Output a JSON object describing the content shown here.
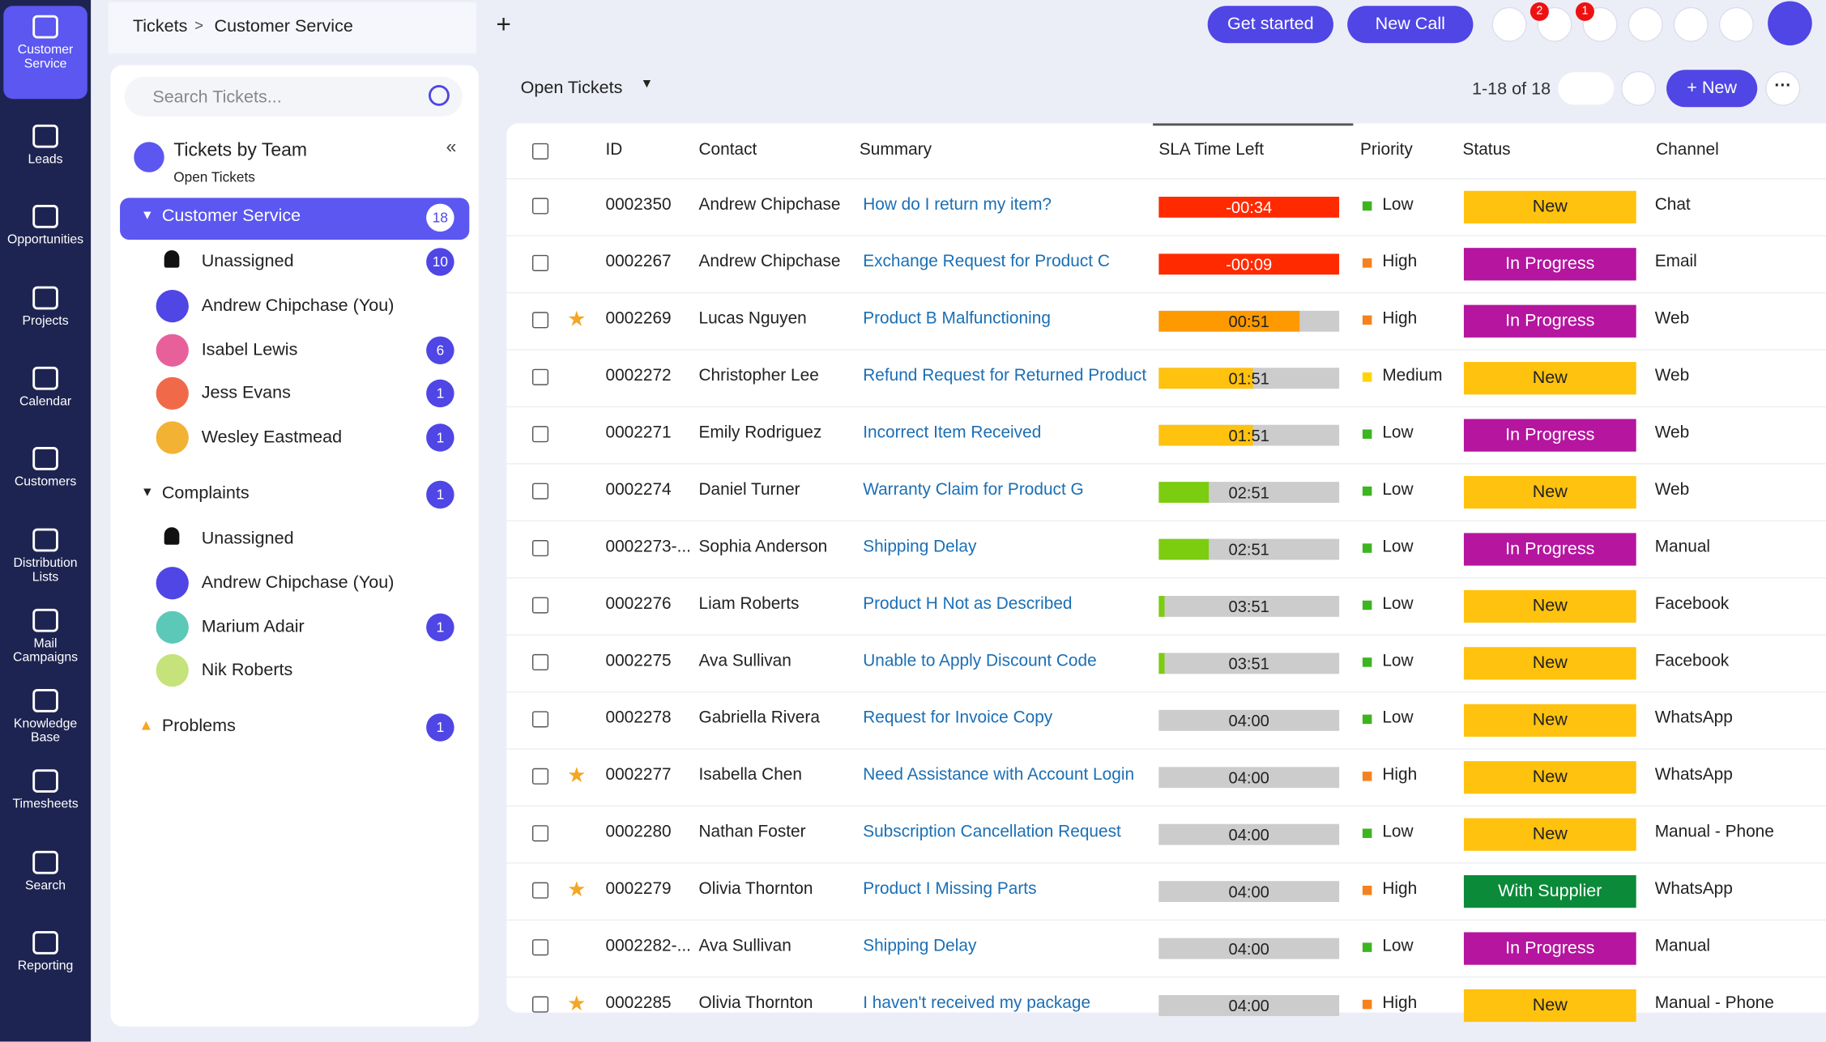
{
  "nav": [
    "Customer Service",
    "Leads",
    "Opportunities",
    "Projects",
    "Calendar",
    "Customers",
    "Distribution Lists",
    "Mail Campaigns",
    "Knowledge Base",
    "Timesheets",
    "Search",
    "Reporting"
  ],
  "breadcrumb": [
    "Tickets",
    "Customer Service"
  ],
  "header_buttons": [
    "Get started",
    "New Call"
  ],
  "notification_badges": [
    2,
    1
  ],
  "search_placeholder": "Search Tickets...",
  "toolbar": {
    "view": "Open Tickets",
    "range": "1-18 of 18",
    "new": "New"
  },
  "panel": {
    "title": "Tickets by Team",
    "filter": "Open Tickets",
    "groups": [
      {
        "name": "Customer Service",
        "count": 18,
        "members": [
          {
            "name": "Unassigned",
            "count": 10
          },
          {
            "name": "Andrew Chipchase (You)",
            "avatar": "#4f46e5"
          },
          {
            "name": "Isabel Lewis",
            "count": 6,
            "avatar": "#e8609a"
          },
          {
            "name": "Jess Evans",
            "count": 1,
            "avatar": "#f06a4a"
          },
          {
            "name": "Wesley Eastmead",
            "count": 1,
            "avatar": "#f2b233"
          }
        ]
      },
      {
        "name": "Complaints",
        "count": 1,
        "members": [
          {
            "name": "Unassigned"
          },
          {
            "name": "Andrew Chipchase (You)",
            "avatar": "#4f46e5"
          },
          {
            "name": "Marium Adair",
            "count": 1,
            "avatar": "#5cc8b8"
          },
          {
            "name": "Nik Roberts",
            "avatar": "#c6e27a"
          }
        ]
      },
      {
        "name": "Problems",
        "count": 1,
        "members": []
      }
    ]
  },
  "table": {
    "columns": [
      "ID",
      "Contact",
      "Summary",
      "SLA Time Left",
      "Priority",
      "Status",
      "Channel"
    ],
    "priority_colors": {
      "Low": "#3cb521",
      "High": "#f5821f",
      "Medium": "#ffd400"
    },
    "status_colors": {
      "New": "#ffc20e",
      "In Progress": "#b5159f",
      "With Supplier": "#0b8a3a"
    },
    "rows": [
      {
        "id": "0002350",
        "contact": "Andrew Chipchase",
        "summary": "How do I return my item?",
        "sla": "-00:34",
        "sla_fill": 100,
        "sla_color": "#ff2a00",
        "priority": "Low",
        "status": "New",
        "channel": "Chat",
        "starred": false
      },
      {
        "id": "0002267",
        "contact": "Andrew Chipchase",
        "summary": "Exchange Request for Product C",
        "sla": "-00:09",
        "sla_fill": 100,
        "sla_color": "#ff2a00",
        "priority": "High",
        "status": "In Progress",
        "channel": "Email",
        "starred": false
      },
      {
        "id": "0002269",
        "contact": "Lucas Nguyen",
        "summary": "Product B Malfunctioning",
        "sla": "00:51",
        "sla_fill": 78,
        "sla_color": "#ff9900",
        "priority": "High",
        "status": "In Progress",
        "channel": "Web",
        "starred": true
      },
      {
        "id": "0002272",
        "contact": "Christopher Lee",
        "summary": "Refund Request for Returned Product",
        "sla": "01:51",
        "sla_fill": 52,
        "sla_color": "#ffc20e",
        "priority": "Medium",
        "status": "New",
        "channel": "Web",
        "starred": false
      },
      {
        "id": "0002271",
        "contact": "Emily Rodriguez",
        "summary": "Incorrect Item Received",
        "sla": "01:51",
        "sla_fill": 52,
        "sla_color": "#ffc20e",
        "priority": "Low",
        "status": "In Progress",
        "channel": "Web",
        "starred": false
      },
      {
        "id": "0002274",
        "contact": "Daniel Turner",
        "summary": "Warranty Claim for Product G",
        "sla": "02:51",
        "sla_fill": 28,
        "sla_color": "#7ccc10",
        "priority": "Low",
        "status": "New",
        "channel": "Web",
        "starred": false
      },
      {
        "id": "0002273-...",
        "contact": "Sophia Anderson",
        "summary": "Shipping Delay",
        "sla": "02:51",
        "sla_fill": 28,
        "sla_color": "#7ccc10",
        "priority": "Low",
        "status": "In Progress",
        "channel": "Manual",
        "starred": false
      },
      {
        "id": "0002276",
        "contact": "Liam Roberts",
        "summary": "Product H Not as Described",
        "sla": "03:51",
        "sla_fill": 3,
        "sla_color": "#7ccc10",
        "priority": "Low",
        "status": "New",
        "channel": "Facebook",
        "starred": false
      },
      {
        "id": "0002275",
        "contact": "Ava Sullivan",
        "summary": "Unable to Apply Discount Code",
        "sla": "03:51",
        "sla_fill": 3,
        "sla_color": "#7ccc10",
        "priority": "Low",
        "status": "New",
        "channel": "Facebook",
        "starred": false
      },
      {
        "id": "0002278",
        "contact": "Gabriella Rivera",
        "summary": "Request for Invoice Copy",
        "sla": "04:00",
        "sla_fill": 0,
        "sla_color": "#7ccc10",
        "priority": "Low",
        "status": "New",
        "channel": "WhatsApp",
        "starred": false
      },
      {
        "id": "0002277",
        "contact": "Isabella Chen",
        "summary": "Need Assistance with Account Login",
        "sla": "04:00",
        "sla_fill": 0,
        "sla_color": "#7ccc10",
        "priority": "High",
        "status": "New",
        "channel": "WhatsApp",
        "starred": true
      },
      {
        "id": "0002280",
        "contact": "Nathan Foster",
        "summary": "Subscription Cancellation Request",
        "sla": "04:00",
        "sla_fill": 0,
        "sla_color": "#7ccc10",
        "priority": "Low",
        "status": "New",
        "channel": "Manual - Phone",
        "starred": false
      },
      {
        "id": "0002279",
        "contact": "Olivia Thornton",
        "summary": "Product I Missing Parts",
        "sla": "04:00",
        "sla_fill": 0,
        "sla_color": "#7ccc10",
        "priority": "High",
        "status": "With Supplier",
        "channel": "WhatsApp",
        "starred": true
      },
      {
        "id": "0002282-...",
        "contact": "Ava Sullivan",
        "summary": "Shipping Delay",
        "sla": "04:00",
        "sla_fill": 0,
        "sla_color": "#7ccc10",
        "priority": "Low",
        "status": "In Progress",
        "channel": "Manual",
        "starred": false
      },
      {
        "id": "0002285",
        "contact": "Olivia Thornton",
        "summary": "I haven't received my package",
        "sla": "04:00",
        "sla_fill": 0,
        "sla_color": "#7ccc10",
        "priority": "High",
        "status": "New",
        "channel": "Manual - Phone",
        "starred": true
      }
    ]
  }
}
